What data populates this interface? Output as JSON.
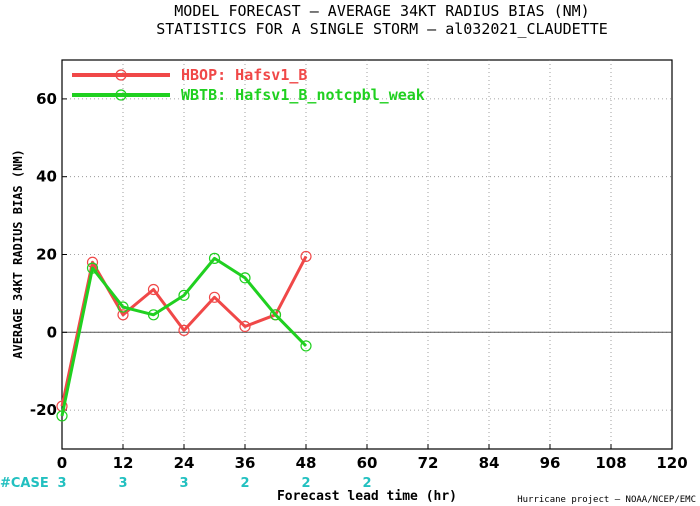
{
  "title_line1": "MODEL FORECAST – AVERAGE 34KT RADIUS BIAS (NM)",
  "title_line2": "STATISTICS FOR A SINGLE STORM – al032021_CLAUDETTE",
  "case_label": "#CASE",
  "credit": "Hurricane project – NOAA/NCEP/EMC",
  "chart_data": {
    "type": "line",
    "xlabel": "Forecast lead time (hr)",
    "ylabel": "AVERAGE 34KT RADIUS BIAS (NM)",
    "xlim": [
      0,
      120
    ],
    "ylim": [
      -30,
      70
    ],
    "xticks": [
      0,
      12,
      24,
      36,
      48,
      60,
      72,
      84,
      96,
      108,
      120
    ],
    "yticks": [
      -20,
      0,
      20,
      40,
      60
    ],
    "grid": true,
    "legend_position": "top-left",
    "zero_line": true,
    "series": [
      {
        "name": "HBOP: Hafsv1_B",
        "color": "#f04848",
        "x": [
          0,
          6,
          12,
          18,
          24,
          30,
          36,
          42,
          48
        ],
        "y": [
          -19,
          18,
          4.5,
          11,
          0.5,
          9,
          1.5,
          4.5,
          19.5
        ]
      },
      {
        "name": "WBTB: Hafsv1_B_notcpbl_weak",
        "color": "#20d020",
        "x": [
          0,
          6,
          12,
          18,
          24,
          30,
          36,
          42,
          48
        ],
        "y": [
          -21.5,
          16.5,
          6.5,
          4.5,
          9.5,
          19,
          14,
          4.5,
          -3.5
        ]
      }
    ],
    "cases": [
      {
        "x": 0,
        "label": "3"
      },
      {
        "x": 12,
        "label": "3"
      },
      {
        "x": 24,
        "label": "3"
      },
      {
        "x": 36,
        "label": "2"
      },
      {
        "x": 48,
        "label": "2"
      },
      {
        "x": 60,
        "label": "2"
      }
    ]
  }
}
